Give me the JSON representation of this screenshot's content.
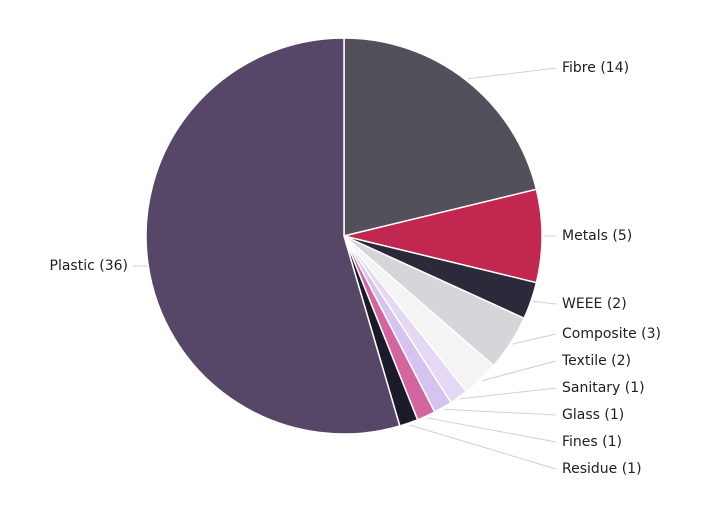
{
  "chart_data": {
    "type": "pie",
    "slices": [
      {
        "name": "Fibre",
        "value": 14,
        "label": "Fibre (14)",
        "color": "#52515b"
      },
      {
        "name": "Metals",
        "value": 5,
        "label": "Metals (5)",
        "color": "#c2284f"
      },
      {
        "name": "WEEE",
        "value": 2,
        "label": "WEEE (2)",
        "color": "#2b2a3a"
      },
      {
        "name": "Composite",
        "value": 3,
        "label": "Composite (3)",
        "color": "#d6d6da"
      },
      {
        "name": "Textile",
        "value": 2,
        "label": "Textile (2)",
        "color": "#f4f4f5"
      },
      {
        "name": "Sanitary",
        "value": 1,
        "label": "Sanitary (1)",
        "color": "#e4d8f5"
      },
      {
        "name": "Glass",
        "value": 1,
        "label": "Glass (1)",
        "color": "#d5c3f0"
      },
      {
        "name": "Fines",
        "value": 1,
        "label": "Fines (1)",
        "color": "#d4669f"
      },
      {
        "name": "Residue",
        "value": 1,
        "label": "Residue (1)",
        "color": "#1b1a2a"
      },
      {
        "name": "Plastic",
        "value": 36,
        "label": "Plastic (36)",
        "color": "#564667"
      }
    ],
    "start_angle": "12 o'clock",
    "direction": "clockwise",
    "legend": "none",
    "labels": "outside with leader lines"
  }
}
